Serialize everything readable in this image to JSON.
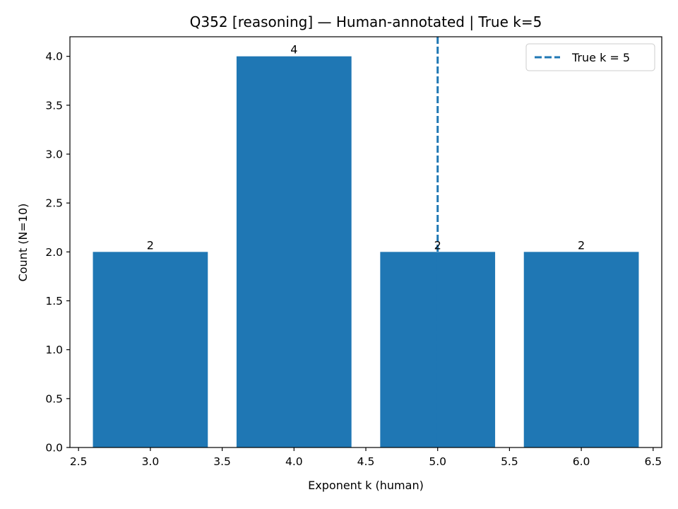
{
  "chart_data": {
    "type": "bar",
    "title": "Q352 [reasoning] — Human-annotated | True k=5",
    "xlabel": "Exponent k (human)",
    "ylabel": "Count (N=10)",
    "x": [
      3,
      4,
      5,
      6
    ],
    "values": [
      2,
      4,
      2,
      2
    ],
    "bar_width": 0.8,
    "bar_color": "#1f77b4",
    "data_labels": [
      "2",
      "4",
      "2",
      "2"
    ],
    "xlim": [
      2.44,
      6.56
    ],
    "ylim": [
      0,
      4.2
    ],
    "xticks": [
      2.5,
      3.0,
      3.5,
      4.0,
      4.5,
      5.0,
      5.5,
      6.0,
      6.5
    ],
    "xtick_labels": [
      "2.5",
      "3.0",
      "3.5",
      "4.0",
      "4.5",
      "5.0",
      "5.5",
      "6.0",
      "6.5"
    ],
    "yticks": [
      0,
      0.5,
      1.0,
      1.5,
      2.0,
      2.5,
      3.0,
      3.5,
      4.0
    ],
    "ytick_labels": [
      "0.0",
      "0.5",
      "1.0",
      "1.5",
      "2.0",
      "2.5",
      "3.0",
      "3.5",
      "4.0"
    ],
    "reference_line": {
      "orientation": "vertical",
      "x": 5,
      "style": "dashed",
      "color": "#1f77b4",
      "label": "True k = 5"
    },
    "legend": {
      "placement": "top-right",
      "entries": [
        "True k = 5"
      ]
    },
    "grid": false
  }
}
